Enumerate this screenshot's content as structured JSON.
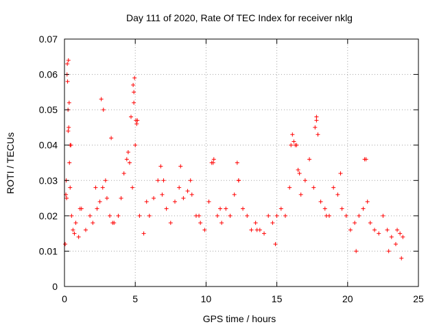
{
  "chart_data": {
    "type": "scatter",
    "title": "Day 111 of 2020, Rate Of TEC Index for receiver nklg",
    "xlabel": "GPS time / hours",
    "ylabel": "ROTI / TECUs",
    "xlim": [
      0,
      25
    ],
    "ylim": [
      0,
      0.07
    ],
    "xticks": [
      0,
      5,
      10,
      15,
      20,
      25
    ],
    "xtick_labels": [
      "0",
      "5",
      "10",
      "15",
      "20",
      "25"
    ],
    "yticks": [
      0,
      0.01,
      0.02,
      0.03,
      0.04,
      0.05,
      0.06,
      0.07
    ],
    "ytick_labels": [
      "0",
      "0.01",
      "0.02",
      "0.03",
      "0.04",
      "0.05",
      "0.06",
      "0.07"
    ],
    "grid": true,
    "marker": "+",
    "color": "#ff0000",
    "series": [
      {
        "name": "ROTI",
        "x": [
          0.05,
          0.15,
          0.2,
          0.25,
          0.3,
          0.35,
          0.4,
          0.5,
          0.6,
          0.7,
          0.8,
          1.0,
          1.2,
          1.5,
          1.8,
          2.0,
          2.3,
          2.5,
          2.7,
          2.9,
          3.0,
          3.2,
          3.5,
          3.8,
          4.0,
          4.2,
          4.4,
          4.6,
          4.8,
          4.9,
          5.0,
          5.1,
          5.3,
          5.6,
          6.0,
          6.3,
          6.6,
          6.9,
          7.2,
          7.5,
          7.8,
          8.1,
          8.4,
          8.7,
          9.0,
          9.3,
          9.6,
          9.9,
          10.2,
          10.5,
          10.8,
          11.1,
          11.4,
          11.7,
          12.0,
          12.3,
          12.6,
          12.9,
          13.2,
          13.5,
          13.8,
          14.1,
          14.4,
          14.7,
          15.0,
          15.3,
          15.6,
          15.9,
          16.1,
          16.3,
          16.5,
          16.7,
          17.0,
          17.3,
          17.6,
          17.8,
          18.1,
          18.4,
          18.7,
          19.0,
          19.3,
          19.6,
          19.9,
          20.2,
          20.5,
          20.8,
          21.1,
          21.3,
          21.6,
          21.9,
          22.2,
          22.5,
          22.8,
          23.1,
          23.4,
          23.7,
          23.9,
          0.1,
          0.22,
          0.28,
          0.33,
          0.45,
          2.6,
          2.75,
          3.3,
          4.5,
          4.7,
          4.85,
          4.95,
          5.15,
          6.8,
          8.2,
          8.9,
          10.4,
          10.55,
          12.2,
          16.2,
          16.4,
          16.6,
          17.7,
          17.9,
          19.5,
          21.2,
          21.4,
          23.5,
          0.18,
          0.26,
          4.9,
          5.05,
          12.3,
          16.0,
          17.8,
          0.12,
          0.4,
          1.1,
          2.2,
          3.4,
          5.8,
          7.0,
          9.5,
          11.0,
          13.6,
          14.9,
          18.5,
          20.6,
          22.9,
          23.8
        ],
        "y": [
          0.012,
          0.025,
          0.063,
          0.05,
          0.045,
          0.035,
          0.028,
          0.02,
          0.016,
          0.015,
          0.018,
          0.014,
          0.022,
          0.016,
          0.02,
          0.018,
          0.022,
          0.024,
          0.028,
          0.03,
          0.025,
          0.02,
          0.018,
          0.02,
          0.025,
          0.032,
          0.036,
          0.035,
          0.028,
          0.055,
          0.04,
          0.046,
          0.02,
          0.015,
          0.02,
          0.025,
          0.03,
          0.026,
          0.022,
          0.018,
          0.024,
          0.028,
          0.025,
          0.027,
          0.026,
          0.02,
          0.018,
          0.016,
          0.024,
          0.035,
          0.02,
          0.018,
          0.022,
          0.02,
          0.026,
          0.03,
          0.022,
          0.02,
          0.016,
          0.018,
          0.016,
          0.015,
          0.02,
          0.018,
          0.02,
          0.022,
          0.02,
          0.028,
          0.043,
          0.04,
          0.033,
          0.026,
          0.03,
          0.036,
          0.028,
          0.048,
          0.024,
          0.022,
          0.02,
          0.028,
          0.026,
          0.022,
          0.02,
          0.016,
          0.018,
          0.02,
          0.022,
          0.036,
          0.018,
          0.016,
          0.015,
          0.02,
          0.016,
          0.014,
          0.012,
          0.015,
          0.014,
          0.026,
          0.058,
          0.064,
          0.052,
          0.04,
          0.053,
          0.05,
          0.042,
          0.038,
          0.048,
          0.057,
          0.059,
          0.047,
          0.034,
          0.034,
          0.03,
          0.035,
          0.036,
          0.035,
          0.041,
          0.04,
          0.032,
          0.045,
          0.043,
          0.032,
          0.036,
          0.024,
          0.016,
          0.06,
          0.044,
          0.052,
          0.047,
          0.03,
          0.04,
          0.047,
          0.03,
          0.04,
          0.022,
          0.028,
          0.018,
          0.024,
          0.03,
          0.02,
          0.022,
          0.016,
          0.012,
          0.02,
          0.01,
          0.01,
          0.008
        ]
      }
    ]
  }
}
